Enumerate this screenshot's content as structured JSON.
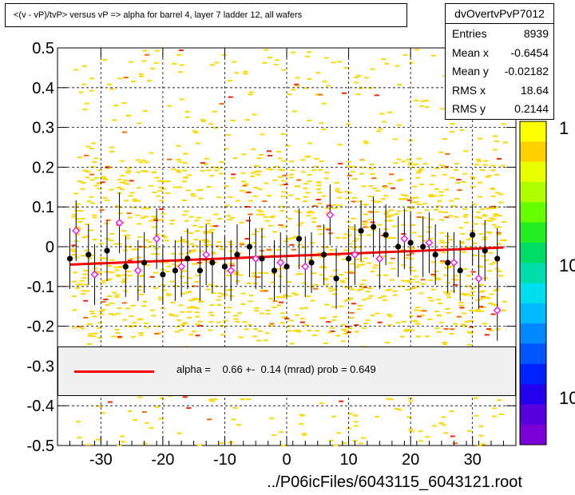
{
  "header": {
    "title": "<(v - vP)/tvP> versus   vP => alpha for barrel 4, layer 7 ladder 12, all wafers"
  },
  "stats": {
    "name": "dvOvertvPvP7012",
    "rows": [
      {
        "label": "Entries",
        "value": "8939"
      },
      {
        "label": "Mean x",
        "value": "-0.6454"
      },
      {
        "label": "Mean y",
        "value": "-0.02182"
      },
      {
        "label": "RMS x",
        "value": "18.64"
      },
      {
        "label": "RMS y",
        "value": "0.2144"
      }
    ]
  },
  "fit": {
    "text": "alpha =    0.66 +-  0.14 (mrad) prob = 0.649",
    "color": "#ff0000"
  },
  "footer": {
    "xlabel": "../P06icFiles/6043115_6043121.root"
  },
  "palette": {
    "labels": [
      "1",
      "10",
      "10"
    ]
  },
  "chart_data": {
    "type": "scatter",
    "title": "<(v - vP)/tvP> versus   vP => alpha for barrel 4, layer 7 ladder 12, all wafers",
    "xlabel": "../P06icFiles/6043115_6043121.root",
    "ylabel": "",
    "xlim": [
      -37,
      37
    ],
    "ylim": [
      -0.5,
      0.5
    ],
    "xticks": [
      -30,
      -20,
      -10,
      0,
      10,
      20,
      30
    ],
    "yticks": [
      -0.5,
      -0.4,
      -0.3,
      -0.2,
      -0.1,
      0,
      0.1,
      0.2,
      0.3,
      0.4,
      0.5
    ],
    "ytick_labels": [
      "-0.5",
      "-0.4",
      "-0.3",
      "-0.2",
      "-0.1",
      "0",
      "0.1",
      "0.2",
      "0.3",
      "0.4",
      "0.5"
    ],
    "grid": true,
    "fit_line": {
      "x": [
        -35,
        35
      ],
      "y": [
        -0.045,
        -0.002
      ]
    },
    "series": [
      {
        "marker": "filled-circle",
        "color": "#000000",
        "x": [
          -35,
          -32,
          -29,
          -26,
          -23,
          -20,
          -18,
          -16,
          -14,
          -12,
          -10,
          -8,
          -6,
          -4,
          -2,
          0,
          2,
          4,
          6,
          8,
          10,
          12,
          14,
          16,
          18,
          20,
          22,
          24,
          26,
          28,
          30,
          32,
          34
        ],
        "y": [
          -0.03,
          -0.02,
          -0.01,
          -0.05,
          -0.04,
          -0.07,
          -0.06,
          -0.03,
          -0.06,
          -0.04,
          -0.05,
          -0.02,
          0.0,
          -0.03,
          -0.06,
          -0.05,
          0.02,
          -0.04,
          -0.02,
          -0.08,
          -0.03,
          0.04,
          0.05,
          0.03,
          0.0,
          0.01,
          0.0,
          -0.02,
          -0.04,
          -0.06,
          0.03,
          -0.01,
          -0.03
        ]
      },
      {
        "marker": "open-diamond",
        "color": "#ff00ff",
        "x": [
          -34,
          -31,
          -27,
          -24,
          -21,
          -17,
          -13,
          -9,
          -5,
          -1,
          3,
          7,
          11,
          15,
          19,
          23,
          27,
          31,
          34
        ],
        "y": [
          0.04,
          -0.07,
          0.06,
          -0.06,
          0.02,
          -0.05,
          -0.02,
          -0.06,
          -0.03,
          -0.04,
          -0.05,
          0.08,
          -0.02,
          -0.03,
          0.02,
          0.01,
          -0.04,
          -0.08,
          -0.16
        ]
      }
    ]
  }
}
